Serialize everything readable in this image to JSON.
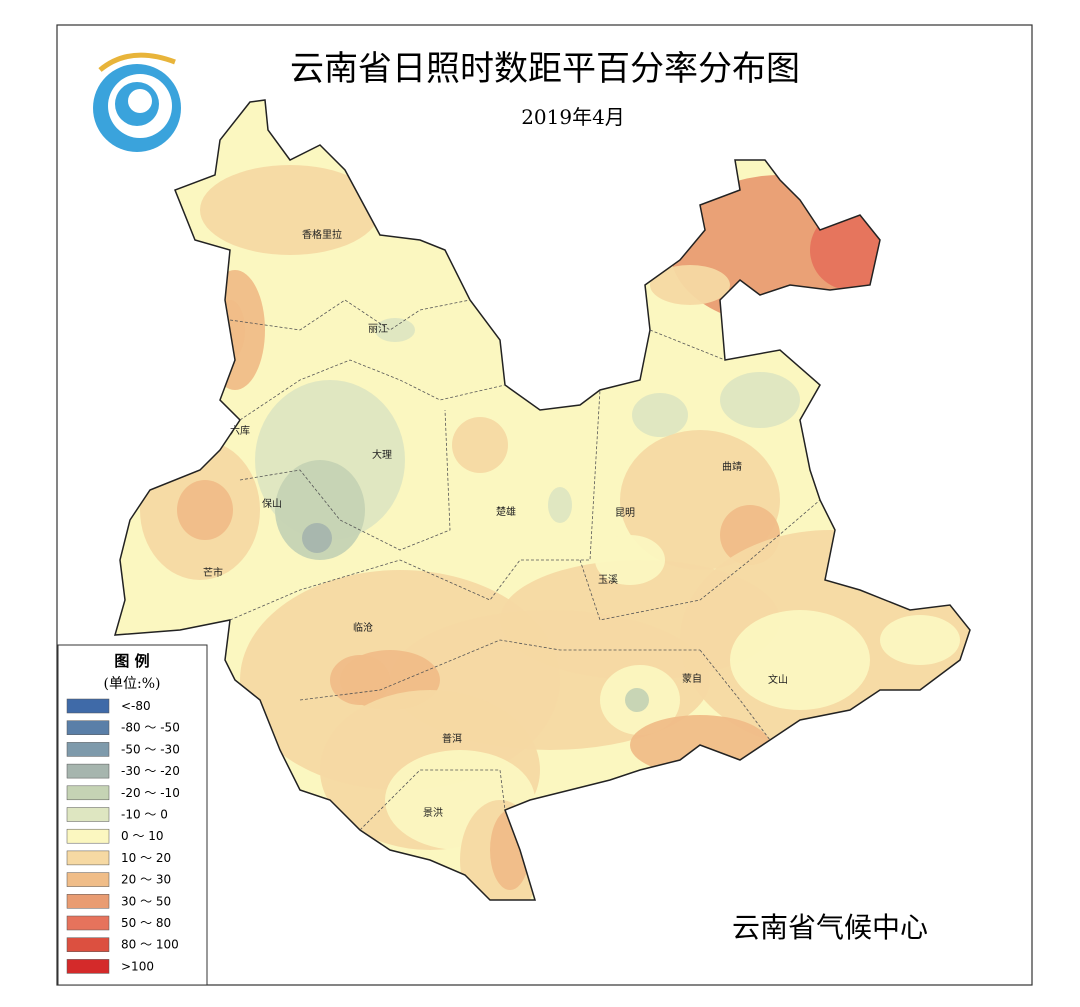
{
  "header": {
    "title": "云南省日照时数距平百分率分布图",
    "subtitle": "2019年4月"
  },
  "legend": {
    "title": "图 例",
    "unit": "(单位:%)",
    "items": [
      {
        "label": "<-80",
        "color": "#3f6aa8"
      },
      {
        "label": "-80 ～ -50",
        "color": "#5a7fa8"
      },
      {
        "label": "-50 ～ -30",
        "color": "#7e9aab"
      },
      {
        "label": "-30 ～ -20",
        "color": "#a6b5ae"
      },
      {
        "label": "-20 ～ -10",
        "color": "#c5d3b4"
      },
      {
        "label": "-10 ～ 0",
        "color": "#dee6c1"
      },
      {
        "label": "0 ～ 10",
        "color": "#fbf7c0"
      },
      {
        "label": "10 ～ 20",
        "color": "#f6d9a3"
      },
      {
        "label": "20 ～ 30",
        "color": "#f0bd88"
      },
      {
        "label": "30 ～ 50",
        "color": "#e99c72"
      },
      {
        "label": "50 ～ 80",
        "color": "#e6735c"
      },
      {
        "label": "80 ～ 100",
        "color": "#dc5040"
      },
      {
        "label": ">100",
        "color": "#d42a2a"
      }
    ]
  },
  "cities": [
    "香格里拉",
    "丽江",
    "六库",
    "大理",
    "保山",
    "楚雄",
    "昆明",
    "曲靖",
    "芒市",
    "玉溪",
    "临沧",
    "蒙自",
    "文山",
    "普洱",
    "景洪"
  ],
  "footer": "云南省气候中心"
}
